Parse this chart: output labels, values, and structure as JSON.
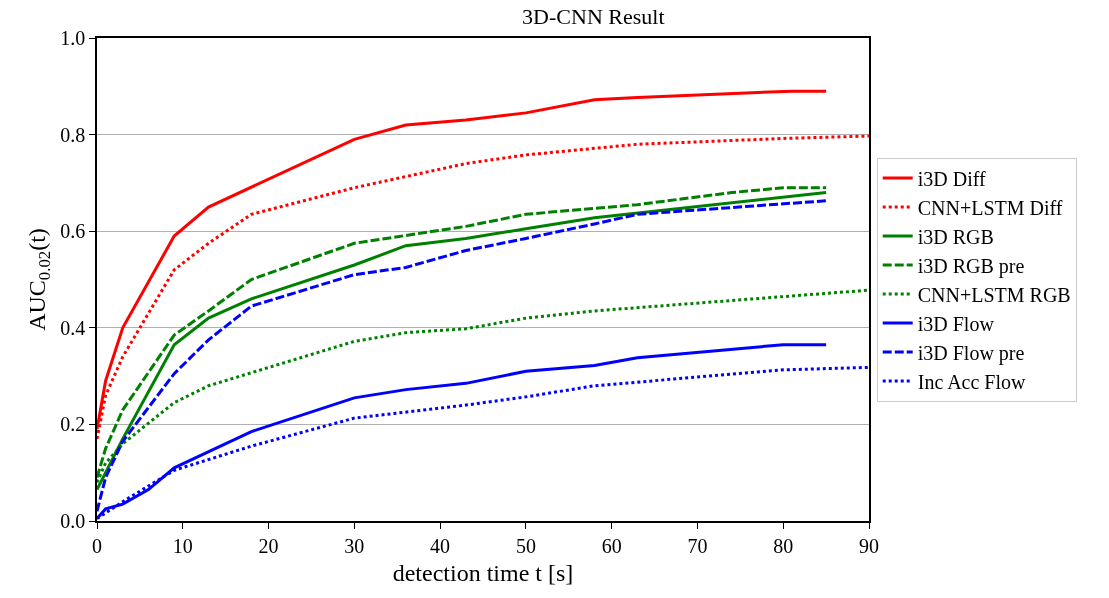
{
  "chart_data": {
    "type": "line",
    "title": "3D-CNN Result",
    "xlabel": "detection time t [s]",
    "ylabel": "AUC$_{0.02}$(t)",
    "xlim": [
      0,
      90
    ],
    "xticks": [
      0,
      10,
      20,
      30,
      40,
      50,
      60,
      70,
      80,
      90
    ],
    "ylim": [
      0,
      1
    ],
    "yticks": [
      {
        "value": 0,
        "label": "0.0"
      },
      0.2,
      0.4,
      0.6,
      0.8,
      {
        "value": 1,
        "label": "1.0"
      }
    ],
    "grid": "y",
    "legend": "right",
    "marker": "none",
    "series": [
      {
        "name": "i3D Diff",
        "color": "#ff0000",
        "line_style": "solid",
        "x": [
          0,
          1,
          3,
          9,
          13,
          30,
          36,
          43,
          50,
          58,
          63,
          81,
          85
        ],
        "values": [
          0.19,
          0.29,
          0.4,
          0.59,
          0.65,
          0.79,
          0.82,
          0.83,
          0.845,
          0.872,
          0.877,
          0.89,
          0.89
        ]
      },
      {
        "name": "CNN+LSTM Diff",
        "color": "#ff0000",
        "line_style": "dotted",
        "x": [
          0,
          1,
          3,
          9,
          13,
          18,
          30,
          43,
          50,
          63,
          80,
          90
        ],
        "values": [
          0.17,
          0.26,
          0.34,
          0.52,
          0.575,
          0.635,
          0.69,
          0.74,
          0.758,
          0.78,
          0.792,
          0.797
        ]
      },
      {
        "name": "i3D RGB",
        "color": "#008000",
        "line_style": "solid",
        "x": [
          0,
          3,
          9,
          13,
          18,
          30,
          36,
          43,
          50,
          58,
          85
        ],
        "values": [
          0.065,
          0.17,
          0.365,
          0.42,
          0.46,
          0.53,
          0.57,
          0.585,
          0.605,
          0.628,
          0.68
        ]
      },
      {
        "name": "i3D RGB pre",
        "color": "#008000",
        "line_style": "dashed",
        "x": [
          0,
          1,
          3,
          9,
          13,
          18,
          30,
          43,
          50,
          63,
          74,
          80,
          85
        ],
        "values": [
          0.09,
          0.15,
          0.23,
          0.385,
          0.435,
          0.5,
          0.575,
          0.61,
          0.635,
          0.655,
          0.68,
          0.69,
          0.69
        ]
      },
      {
        "name": "CNN+LSTM RGB",
        "color": "#008000",
        "line_style": "dotted",
        "x": [
          0,
          1,
          3,
          9,
          13,
          30,
          36,
          43,
          50,
          58,
          90
        ],
        "values": [
          0.08,
          0.12,
          0.16,
          0.245,
          0.28,
          0.372,
          0.39,
          0.398,
          0.42,
          0.435,
          0.478
        ]
      },
      {
        "name": "i3D Flow",
        "color": "#0000ff",
        "line_style": "solid",
        "x": [
          0,
          1,
          3,
          6,
          9,
          18,
          30,
          36,
          43,
          50,
          58,
          63,
          80,
          85
        ],
        "values": [
          0.005,
          0.025,
          0.035,
          0.065,
          0.11,
          0.185,
          0.255,
          0.272,
          0.285,
          0.31,
          0.322,
          0.338,
          0.365,
          0.365
        ]
      },
      {
        "name": "i3D Flow pre",
        "color": "#0000ff",
        "line_style": "dashed",
        "x": [
          0,
          1,
          3,
          9,
          13,
          18,
          30,
          36,
          43,
          50,
          58,
          63,
          85
        ],
        "values": [
          0.02,
          0.09,
          0.165,
          0.305,
          0.375,
          0.445,
          0.51,
          0.525,
          0.56,
          0.585,
          0.615,
          0.635,
          0.663
        ]
      },
      {
        "name": "Inc Acc Flow",
        "color": "#0000ff",
        "line_style": "dotted",
        "x": [
          0,
          3,
          9,
          18,
          30,
          43,
          50,
          58,
          80,
          90
        ],
        "values": [
          0.005,
          0.04,
          0.105,
          0.155,
          0.213,
          0.24,
          0.257,
          0.28,
          0.313,
          0.318
        ]
      }
    ]
  }
}
